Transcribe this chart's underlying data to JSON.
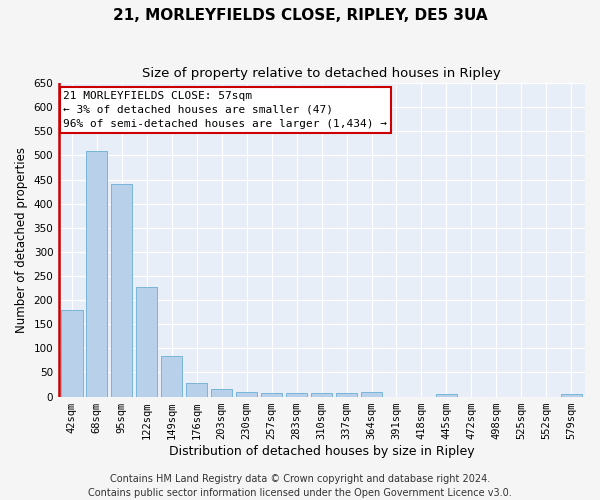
{
  "title": "21, MORLEYFIELDS CLOSE, RIPLEY, DE5 3UA",
  "subtitle": "Size of property relative to detached houses in Ripley",
  "xlabel": "Distribution of detached houses by size in Ripley",
  "ylabel": "Number of detached properties",
  "categories": [
    "42sqm",
    "68sqm",
    "95sqm",
    "122sqm",
    "149sqm",
    "176sqm",
    "203sqm",
    "230sqm",
    "257sqm",
    "283sqm",
    "310sqm",
    "337sqm",
    "364sqm",
    "391sqm",
    "418sqm",
    "445sqm",
    "472sqm",
    "498sqm",
    "525sqm",
    "552sqm",
    "579sqm"
  ],
  "values": [
    180,
    510,
    440,
    228,
    85,
    28,
    15,
    10,
    8,
    8,
    8,
    8,
    10,
    0,
    0,
    5,
    0,
    0,
    0,
    0,
    5
  ],
  "bar_color": "#b8d0ea",
  "bar_edge_color": "#6aaed6",
  "ylim": [
    0,
    650
  ],
  "yticks": [
    0,
    50,
    100,
    150,
    200,
    250,
    300,
    350,
    400,
    450,
    500,
    550,
    600,
    650
  ],
  "annotation_line1": "21 MORLEYFIELDS CLOSE: 57sqm",
  "annotation_line2": "← 3% of detached houses are smaller (47)",
  "annotation_line3": "96% of semi-detached houses are larger (1,434) →",
  "annotation_box_facecolor": "#ffffff",
  "annotation_box_edgecolor": "#cc0000",
  "footer_line1": "Contains HM Land Registry data © Crown copyright and database right 2024.",
  "footer_line2": "Contains public sector information licensed under the Open Government Licence v3.0.",
  "fig_facecolor": "#f5f5f5",
  "plot_facecolor": "#e8eef8",
  "grid_color": "#ffffff",
  "property_line_color": "#cc0000",
  "title_fontsize": 11,
  "subtitle_fontsize": 9.5,
  "ylabel_fontsize": 8.5,
  "xlabel_fontsize": 9,
  "tick_fontsize": 7.5,
  "footer_fontsize": 7,
  "annotation_fontsize": 8
}
